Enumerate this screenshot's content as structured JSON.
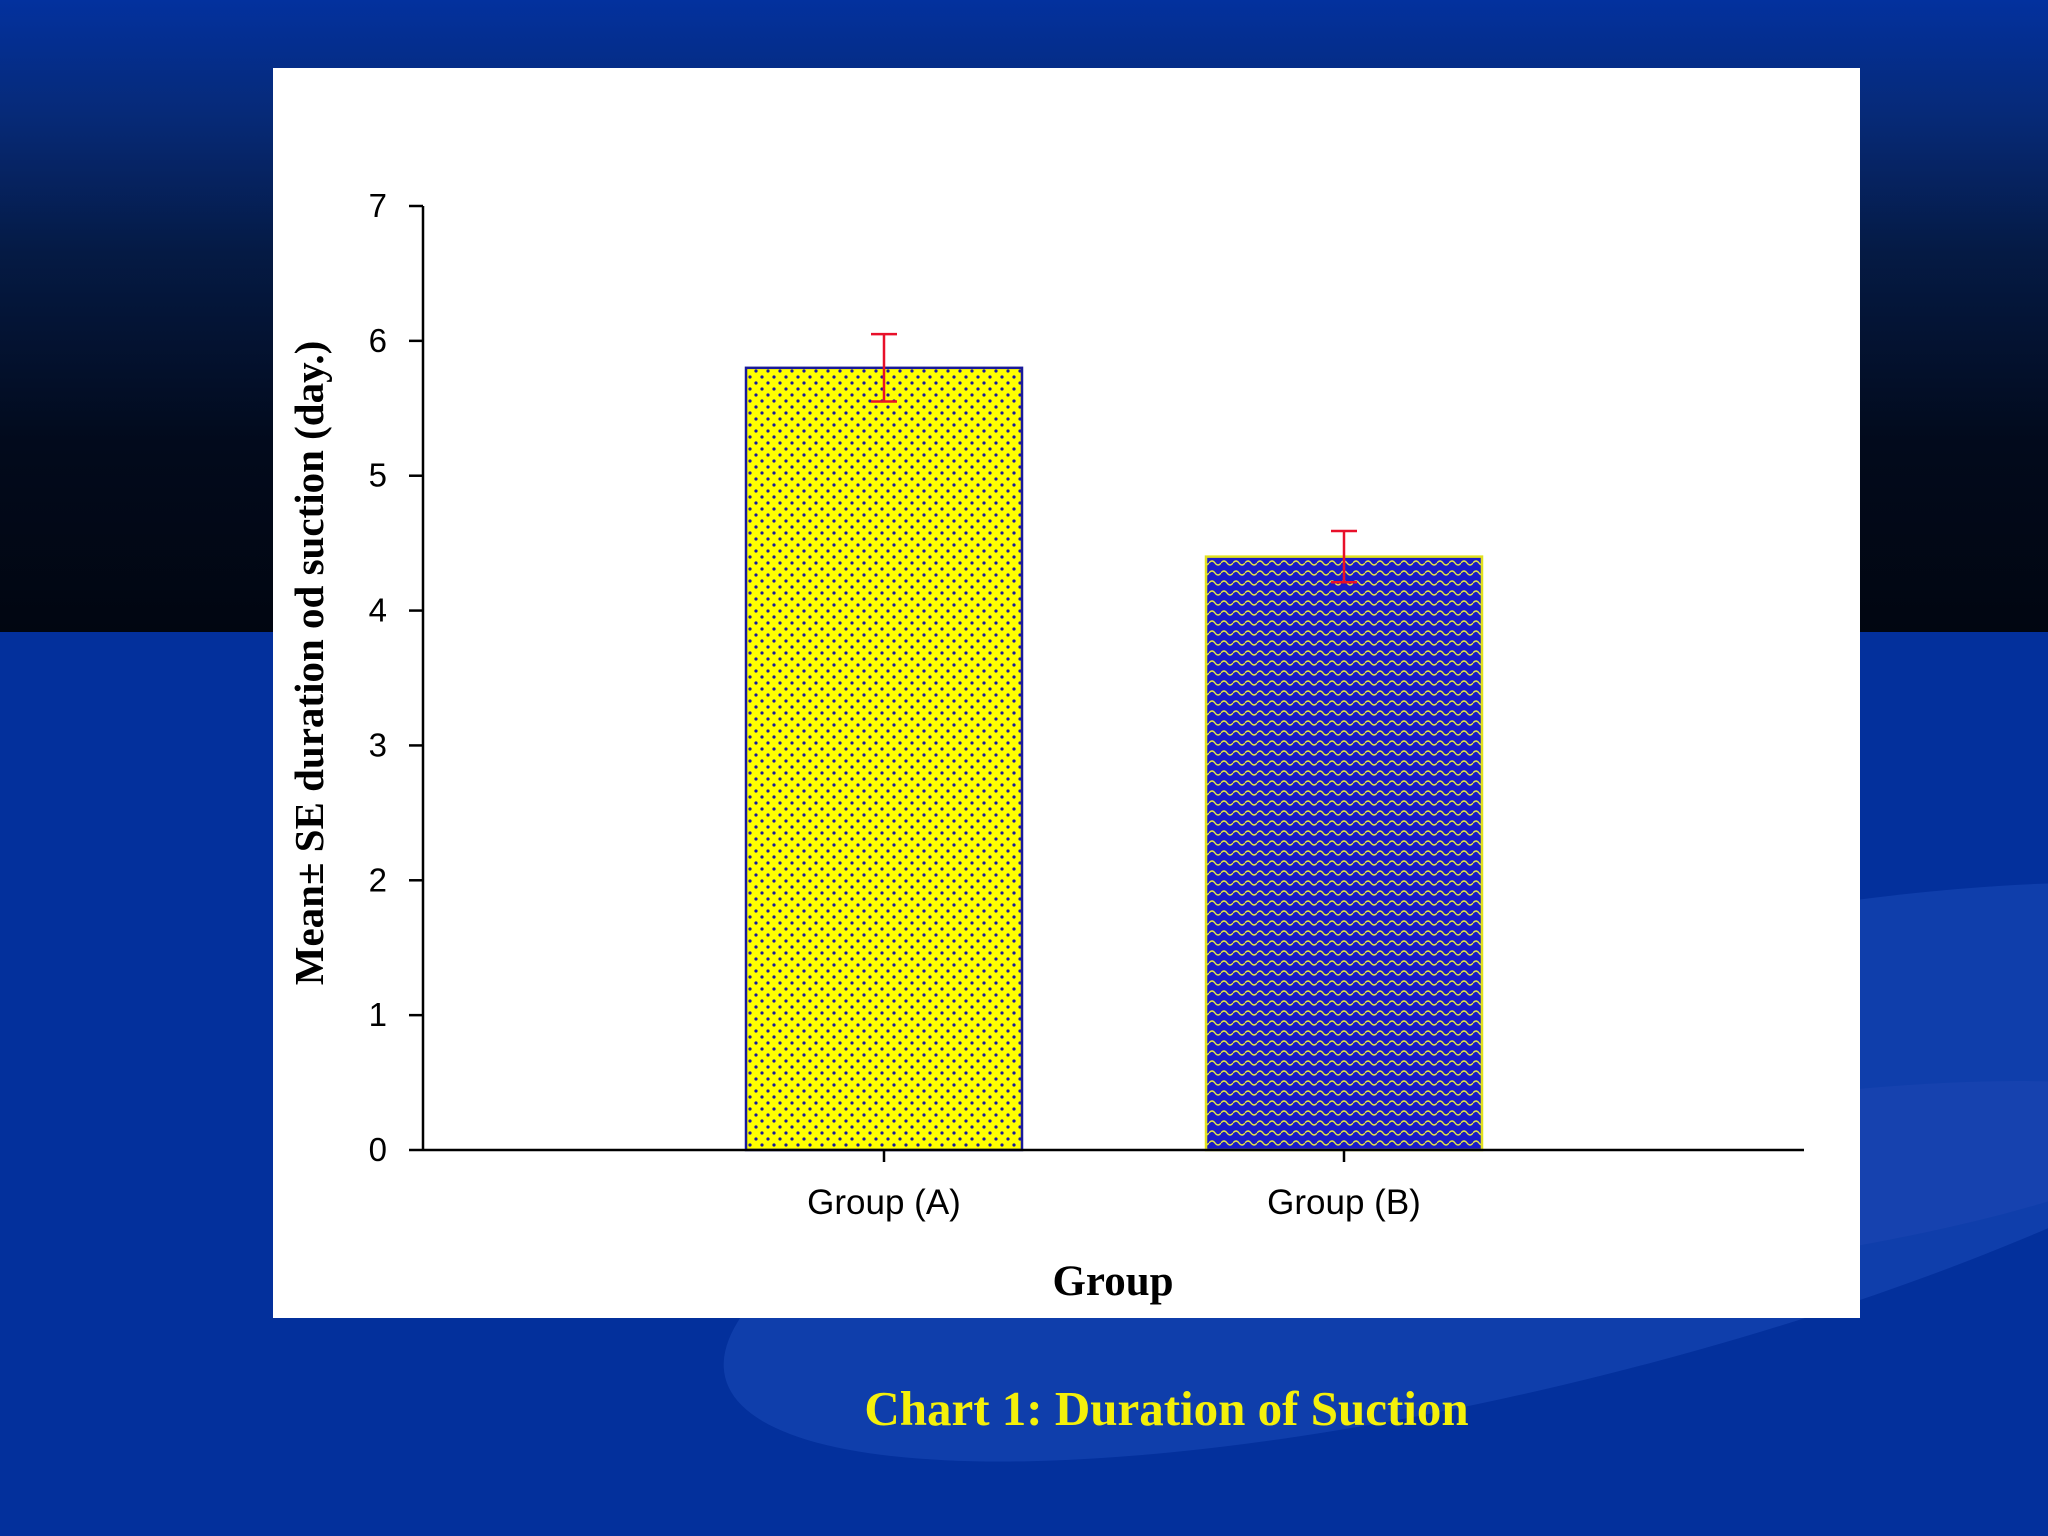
{
  "slide": {
    "caption": "Chart 1: Duration of Suction",
    "colors": {
      "background_blue": "#03309c",
      "caption_yellow": "#f4f00a",
      "bar_yellow": "#ffff00",
      "bar_blue": "#1a1ac8",
      "error_bar_red": "#e8102a"
    }
  },
  "chart_data": {
    "type": "bar",
    "categories": [
      "Group (A)",
      "Group (B)"
    ],
    "values": [
      5.8,
      4.4
    ],
    "error": [
      0.25,
      0.19
    ],
    "xlabel": "Group",
    "ylabel": "Mean± SE duration od suction (day.)",
    "ylim": [
      0,
      7
    ],
    "yticks": [
      "0",
      "1",
      "2",
      "3",
      "4",
      "5",
      "6",
      "7"
    ],
    "grid": false,
    "legend": "none",
    "bar_fills": [
      "yellow with blue dot pattern",
      "blue with yellow wave pattern"
    ]
  }
}
